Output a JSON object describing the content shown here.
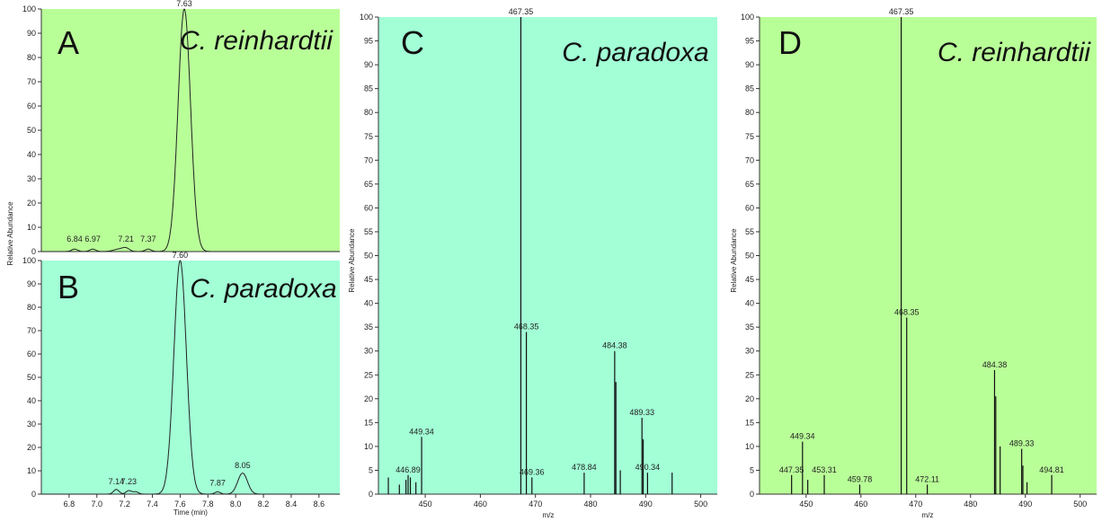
{
  "chart_data": [
    {
      "panel": "A",
      "type": "line",
      "organism": "C. reinhardtii",
      "colors": {
        "background": "#b9ff98",
        "trace": "#222222"
      },
      "xlim": [
        6.6,
        8.75
      ],
      "ylim": [
        0,
        100
      ],
      "yticks": [
        0,
        10,
        20,
        30,
        40,
        50,
        60,
        70,
        80,
        90,
        100
      ],
      "ylabel": "Relative Abundance",
      "peaks": [
        {
          "rt": 6.84,
          "height": 1.0,
          "width": 0.022
        },
        {
          "rt": 6.97,
          "height": 1.0,
          "width": 0.022
        },
        {
          "rt": 7.16,
          "height": 1.0,
          "width": 0.04
        },
        {
          "rt": 7.21,
          "height": 1.2,
          "width": 0.025
        },
        {
          "rt": 7.37,
          "height": 1.0,
          "width": 0.022
        },
        {
          "rt": 7.63,
          "height": 100,
          "width": 0.045
        }
      ],
      "peak_labels": [
        {
          "text": "6.84",
          "x": 6.84,
          "y": 3
        },
        {
          "text": "6.97",
          "x": 6.97,
          "y": 3
        },
        {
          "text": "7.21",
          "x": 7.21,
          "y": 3
        },
        {
          "text": "7.37",
          "x": 7.37,
          "y": 3
        },
        {
          "text": "7.63",
          "x": 7.63,
          "y": 100
        }
      ]
    },
    {
      "panel": "B",
      "type": "line",
      "organism": "C. paradoxa",
      "colors": {
        "background": "#a2ffd6",
        "trace": "#222222"
      },
      "xlim": [
        6.6,
        8.75
      ],
      "ylim": [
        0,
        100
      ],
      "xticks": [
        6.8,
        7.0,
        7.2,
        7.4,
        7.6,
        7.8,
        8.0,
        8.2,
        8.4,
        8.6
      ],
      "xtick_labels": [
        "6.8",
        "7.0",
        "7.2",
        "7.4",
        "7.6",
        "7.8",
        "8.0",
        "8.2",
        "8.4",
        "8.6"
      ],
      "yticks": [
        0,
        10,
        20,
        30,
        40,
        50,
        60,
        70,
        80,
        90,
        100
      ],
      "xlabel": "Time (min)",
      "peaks": [
        {
          "rt": 7.14,
          "height": 2,
          "width": 0.02
        },
        {
          "rt": 7.23,
          "height": 1.5,
          "width": 0.02
        },
        {
          "rt": 7.28,
          "height": 1.0,
          "width": 0.02
        },
        {
          "rt": 7.6,
          "height": 100,
          "width": 0.045
        },
        {
          "rt": 7.87,
          "height": 1.0,
          "width": 0.02
        },
        {
          "rt": 8.05,
          "height": 9,
          "width": 0.035
        }
      ],
      "peak_labels": [
        {
          "text": "7.14",
          "x": 7.14,
          "y": 3
        },
        {
          "text": "7.23",
          "x": 7.23,
          "y": 3
        },
        {
          "text": "7.60",
          "x": 7.6,
          "y": 100
        },
        {
          "text": "7.87",
          "x": 7.87,
          "y": 2.5
        },
        {
          "text": "8.05",
          "x": 8.05,
          "y": 10
        }
      ]
    },
    {
      "panel": "C",
      "type": "bar",
      "organism": "C. paradoxa",
      "colors": {
        "background": "#a2ffd6",
        "stick": "#111111"
      },
      "xlim": [
        441.5,
        503
      ],
      "ylim": [
        0,
        100
      ],
      "xticks": [
        450,
        460,
        470,
        480,
        490,
        500
      ],
      "xtick_labels": [
        "450",
        "460",
        "470",
        "480",
        "490",
        "500"
      ],
      "yticks": [
        0,
        5,
        10,
        15,
        20,
        25,
        30,
        35,
        40,
        45,
        50,
        55,
        60,
        65,
        70,
        75,
        80,
        85,
        90,
        95,
        100
      ],
      "xlabel": "m/z",
      "ylabel": "Relative Abundance",
      "peaks": [
        {
          "mz": 443.3,
          "intensity": 3.5
        },
        {
          "mz": 445.3,
          "intensity": 2
        },
        {
          "mz": 446.5,
          "intensity": 3
        },
        {
          "mz": 446.89,
          "intensity": 4
        },
        {
          "mz": 447.3,
          "intensity": 3.5
        },
        {
          "mz": 448.3,
          "intensity": 2.5
        },
        {
          "mz": 449.34,
          "intensity": 12
        },
        {
          "mz": 467.35,
          "intensity": 100
        },
        {
          "mz": 468.35,
          "intensity": 34
        },
        {
          "mz": 469.36,
          "intensity": 3.5
        },
        {
          "mz": 478.84,
          "intensity": 4.5
        },
        {
          "mz": 484.38,
          "intensity": 30
        },
        {
          "mz": 484.6,
          "intensity": 23.5
        },
        {
          "mz": 485.4,
          "intensity": 5
        },
        {
          "mz": 489.33,
          "intensity": 16
        },
        {
          "mz": 489.55,
          "intensity": 11.5
        },
        {
          "mz": 490.34,
          "intensity": 4.5
        },
        {
          "mz": 494.8,
          "intensity": 4.5
        }
      ],
      "peak_labels": [
        {
          "text": "446.89",
          "x": 446.89,
          "y": 4
        },
        {
          "text": "449.34",
          "x": 449.34,
          "y": 12
        },
        {
          "text": "467.35",
          "x": 467.35,
          "y": 100
        },
        {
          "text": "468.35",
          "x": 468.35,
          "y": 34
        },
        {
          "text": "469.36",
          "x": 469.36,
          "y": 3.5
        },
        {
          "text": "478.84",
          "x": 478.84,
          "y": 4.5
        },
        {
          "text": "484.38",
          "x": 484.38,
          "y": 30
        },
        {
          "text": "489.33",
          "x": 489.33,
          "y": 16
        },
        {
          "text": "490.34",
          "x": 490.34,
          "y": 4.5
        }
      ]
    },
    {
      "panel": "D",
      "type": "bar",
      "organism": "C. reinhardtii",
      "colors": {
        "background": "#b9ff98",
        "stick": "#111111"
      },
      "xlim": [
        441.5,
        503
      ],
      "ylim": [
        0,
        100
      ],
      "xticks": [
        450,
        460,
        470,
        480,
        490,
        500
      ],
      "xtick_labels": [
        "450",
        "460",
        "470",
        "480",
        "490",
        "500"
      ],
      "yticks": [
        0,
        5,
        10,
        15,
        20,
        25,
        30,
        35,
        40,
        45,
        50,
        55,
        60,
        65,
        70,
        75,
        80,
        85,
        90,
        95,
        100
      ],
      "xlabel": "m/z",
      "ylabel": "Relative Abundance",
      "peaks": [
        {
          "mz": 447.35,
          "intensity": 4
        },
        {
          "mz": 449.34,
          "intensity": 11
        },
        {
          "mz": 450.3,
          "intensity": 3
        },
        {
          "mz": 453.31,
          "intensity": 4
        },
        {
          "mz": 459.78,
          "intensity": 2
        },
        {
          "mz": 467.35,
          "intensity": 100
        },
        {
          "mz": 468.35,
          "intensity": 37
        },
        {
          "mz": 472.11,
          "intensity": 2
        },
        {
          "mz": 484.38,
          "intensity": 26
        },
        {
          "mz": 484.6,
          "intensity": 20.5
        },
        {
          "mz": 485.4,
          "intensity": 10
        },
        {
          "mz": 489.33,
          "intensity": 9.5
        },
        {
          "mz": 489.55,
          "intensity": 6
        },
        {
          "mz": 490.3,
          "intensity": 2.5
        },
        {
          "mz": 494.81,
          "intensity": 4
        }
      ],
      "peak_labels": [
        {
          "text": "447.35",
          "x": 447.35,
          "y": 4
        },
        {
          "text": "449.34",
          "x": 449.34,
          "y": 11
        },
        {
          "text": "453.31",
          "x": 453.31,
          "y": 4
        },
        {
          "text": "459.78",
          "x": 459.78,
          "y": 2
        },
        {
          "text": "467.35",
          "x": 467.35,
          "y": 100
        },
        {
          "text": "468.35",
          "x": 468.35,
          "y": 37
        },
        {
          "text": "472.11",
          "x": 472.11,
          "y": 2
        },
        {
          "text": "484.38",
          "x": 484.38,
          "y": 26
        },
        {
          "text": "489.33",
          "x": 489.33,
          "y": 9.5
        },
        {
          "text": "494.81",
          "x": 494.81,
          "y": 4
        }
      ]
    }
  ]
}
